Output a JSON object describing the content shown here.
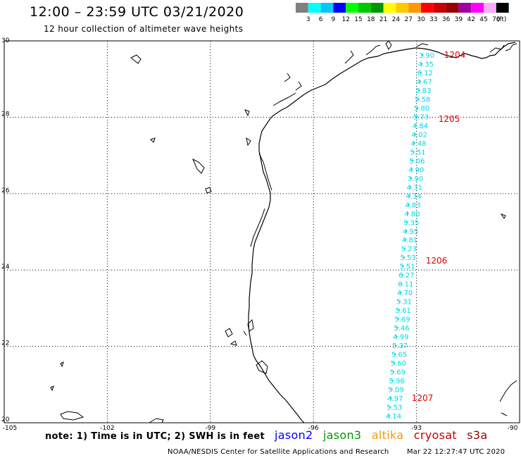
{
  "header": {
    "title": "12:00 – 23:59 UTC 03/21/2020",
    "subtitle": "12 hour collection of altimeter wave heights"
  },
  "color_scale": {
    "colors": [
      "#808080",
      "#00ffff",
      "#00c8ff",
      "#0000ff",
      "#00ff00",
      "#00c800",
      "#009600",
      "#ffff00",
      "#ffc800",
      "#ff9600",
      "#ff0000",
      "#c80000",
      "#960000",
      "#a000a0",
      "#ff00ff",
      "#ffaaff",
      "#000000"
    ],
    "labels": [
      "3",
      "6",
      "9",
      "12",
      "15",
      "18",
      "21",
      "24",
      "27",
      "30",
      "33",
      "36",
      "39",
      "42",
      "45",
      "70"
    ],
    "unit": "(ft)"
  },
  "axes": {
    "lat_labels": [
      "30",
      "28",
      "26",
      "24",
      "22",
      "20"
    ],
    "lon_labels": [
      "-105",
      "-102",
      "-99",
      "-96",
      "-93",
      "-90"
    ]
  },
  "track": {
    "color": "#00d8e8",
    "values": [
      "3.90",
      "4.35",
      "6.12",
      "4.67",
      "5.83",
      "5.58",
      "5.80",
      "5.73",
      "4.84",
      "4.02",
      "4.48",
      "5.51",
      "5.06",
      "4.90",
      "3.90",
      "4.31",
      "4.34",
      "4.83",
      "4.80",
      "5.35",
      "4.95",
      "4.81",
      "5.23",
      "5.53",
      "5.51",
      "6.27",
      "6.11",
      "4.70",
      "5.31",
      "5.61",
      "5.69",
      "5.46",
      "4.99",
      "5.37",
      "5.65",
      "5.60",
      "5.69",
      "5.96",
      "5.09",
      "4.97",
      "5.53",
      "4.14"
    ]
  },
  "time_labels": {
    "color": "#e00000",
    "items": [
      {
        "text": "1204"
      },
      {
        "text": "1205"
      },
      {
        "text": "1206"
      },
      {
        "text": "1207"
      }
    ]
  },
  "note": "note: 1) Time is in UTC; 2) SWH is in feet",
  "satellites": [
    {
      "name": "jason2",
      "color": "#0000ff"
    },
    {
      "name": "jason3",
      "color": "#009600"
    },
    {
      "name": "altika",
      "color": "#ff9600"
    },
    {
      "name": "cryosat",
      "color": "#c80000"
    },
    {
      "name": "s3a",
      "color": "#960000"
    }
  ],
  "footer": {
    "source": "NOAA/NESDIS Center for Satellite Applications and Research",
    "timestamp": "Mar 22 12:27:47 UTC 2020"
  }
}
